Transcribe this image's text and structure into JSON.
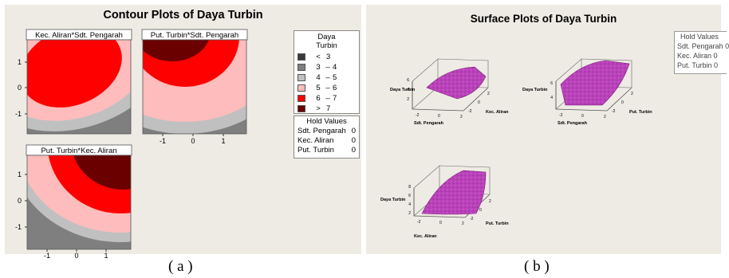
{
  "captions": {
    "a": "( a )",
    "b": "( b )"
  },
  "colors": {
    "panel_bg": "#eeebe4",
    "levels": [
      "#3a3a3a",
      "#7f7f7f",
      "#c0c0c0",
      "#ffbcbc",
      "#ff0000",
      "#6b0000"
    ],
    "surface": "#c040c0"
  },
  "chart_data": [
    {
      "type": "contour",
      "title": "Contour Plots of Daya Turbin",
      "legend": {
        "title_line1": "Daya",
        "title_line2": "Turbin",
        "entries": [
          {
            "a": "<",
            "b": "3"
          },
          {
            "a": "3",
            "sep": "–",
            "b": "4"
          },
          {
            "a": "4",
            "sep": "–",
            "b": "5"
          },
          {
            "a": "5",
            "sep": "–",
            "b": "6"
          },
          {
            "a": "6",
            "sep": "–",
            "b": "7"
          },
          {
            "a": ">",
            "b": "7"
          }
        ]
      },
      "hold_values": {
        "title": "Hold Values",
        "rows": [
          {
            "name": "Sdt. Pengarah",
            "value": "0"
          },
          {
            "name": "Kec. Aliran",
            "value": "0"
          },
          {
            "name": "Put. Turbin",
            "value": "0"
          }
        ]
      },
      "subplots": [
        {
          "label": "Kec. Aliran*Sdt. Pengarah",
          "xticks": [],
          "yticks": [
            "1",
            "0",
            "-1"
          ],
          "xlim": [
            -1.7,
            1.7
          ],
          "ylim": [
            -1.7,
            1.7
          ]
        },
        {
          "label": "Put. Turbin*Sdt. Pengarah",
          "xticks": [
            "-1",
            "0",
            "1"
          ],
          "yticks": [],
          "xlim": [
            -1.7,
            1.7
          ],
          "ylim": [
            -1.7,
            1.7
          ]
        },
        {
          "label": "Put. Turbin*Kec. Aliran",
          "xticks": [
            "-1",
            "0",
            "1"
          ],
          "yticks": [
            "1",
            "0",
            "-1"
          ],
          "xlim": [
            -1.7,
            1.7
          ],
          "ylim": [
            -1.7,
            1.7
          ]
        }
      ]
    },
    {
      "type": "surface",
      "title": "Surface Plots of Daya Turbin",
      "hold_values": {
        "title": "Hold Values",
        "rows": [
          {
            "name": "Sdt. Pengarah",
            "value": "0"
          },
          {
            "name": "Kec. Aliran",
            "value": "0"
          },
          {
            "name": "Put. Turbin",
            "value": "0"
          }
        ]
      },
      "subplots": [
        {
          "zlabel": "Daya Turbin",
          "xlabel": "Sdt. Pengarah",
          "ylabel": "Kec. Aliran",
          "zticks": [
            "2",
            "4",
            "6"
          ],
          "xticks": [
            "-2",
            "0",
            "2"
          ],
          "yticks": [
            "2",
            "0",
            "-2"
          ]
        },
        {
          "zlabel": "Daya Turbin",
          "xlabel": "Sdt. Pengarah",
          "ylabel": "Put. Turbin",
          "zticks": [
            "4",
            "6"
          ],
          "xticks": [
            "-2",
            "0",
            "2"
          ],
          "yticks": [
            "2",
            "0",
            "-2"
          ]
        },
        {
          "zlabel": "Daya Turbin",
          "xlabel": "Kec. Aliran",
          "ylabel": "Put. Turbin",
          "zticks": [
            "2",
            "4",
            "6",
            "8"
          ],
          "xticks": [
            "-2",
            "0",
            "2"
          ],
          "yticks": [
            "2",
            "0",
            "-2"
          ]
        }
      ]
    }
  ]
}
